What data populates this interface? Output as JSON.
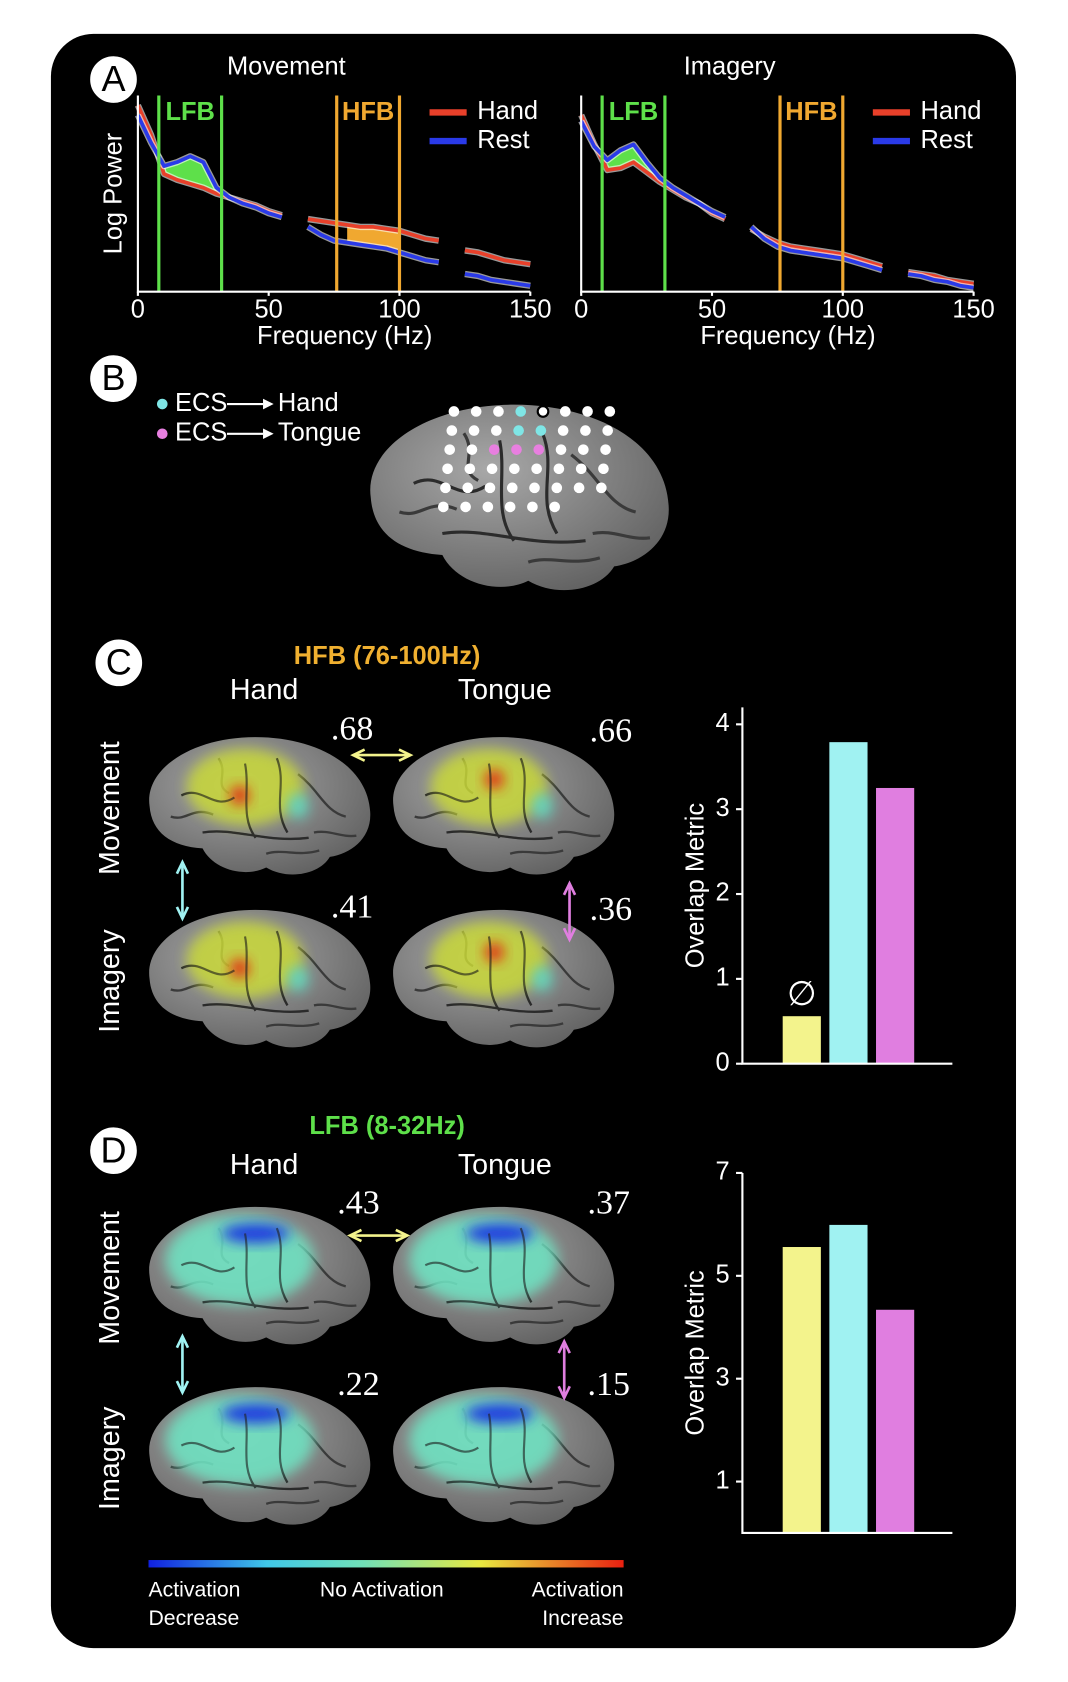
{
  "panel_labels": [
    "A",
    "B",
    "C",
    "D"
  ],
  "chart_data": [
    {
      "type": "line",
      "title": "Movement",
      "ylabel": "Log Power",
      "xlabel": "Frequency (Hz)",
      "x": [
        0,
        5,
        10,
        15,
        20,
        25,
        30,
        35,
        40,
        45,
        50,
        55,
        60,
        65,
        70,
        75,
        80,
        85,
        90,
        95,
        100,
        105,
        110,
        115,
        120,
        125,
        130,
        135,
        140,
        145,
        150
      ],
      "series": [
        {
          "name": "Hand",
          "color": "#e8402a",
          "values": [
            9.5,
            8.0,
            6.0,
            5.7,
            5.5,
            5.3,
            5.0,
            4.8,
            4.6,
            4.4,
            4.1,
            3.9,
            null,
            3.7,
            3.6,
            3.5,
            3.4,
            3.3,
            3.3,
            3.2,
            3.1,
            2.9,
            2.7,
            2.6,
            null,
            2.1,
            2.0,
            1.8,
            1.6,
            1.5,
            1.4
          ]
        },
        {
          "name": "Rest",
          "color": "#2a3ae8",
          "values": [
            9.0,
            7.6,
            6.4,
            6.6,
            6.9,
            6.6,
            5.3,
            4.8,
            4.5,
            4.3,
            4.0,
            3.8,
            null,
            3.3,
            2.9,
            2.6,
            2.5,
            2.4,
            2.3,
            2.2,
            2.0,
            1.8,
            1.6,
            1.5,
            null,
            0.9,
            0.8,
            0.6,
            0.5,
            0.4,
            0.3
          ]
        }
      ],
      "bands": [
        {
          "label": "LFB",
          "range": [
            8,
            32
          ],
          "color": "#5ee04a"
        },
        {
          "label": "HFB",
          "range": [
            76,
            100
          ],
          "color": "#f0a830"
        }
      ],
      "xlim": [
        0,
        150
      ],
      "xticks": [
        0,
        50,
        100,
        150
      ],
      "ylim": [
        0,
        10
      ]
    },
    {
      "type": "line",
      "title": "Imagery",
      "xlabel": "Frequency (Hz)",
      "x": [
        0,
        5,
        10,
        15,
        20,
        25,
        30,
        35,
        40,
        45,
        50,
        55,
        60,
        65,
        70,
        75,
        80,
        85,
        90,
        95,
        100,
        105,
        110,
        115,
        120,
        125,
        130,
        135,
        140,
        145,
        150
      ],
      "series": [
        {
          "name": "Hand",
          "color": "#e8402a",
          "values": [
            9.0,
            7.5,
            6.2,
            6.3,
            6.6,
            6.1,
            5.6,
            5.2,
            4.8,
            4.5,
            4.0,
            3.7,
            null,
            3.2,
            2.8,
            2.5,
            2.3,
            2.2,
            2.1,
            2.0,
            1.9,
            1.7,
            1.5,
            1.3,
            null,
            1.0,
            0.9,
            0.8,
            0.6,
            0.5,
            0.4
          ]
        },
        {
          "name": "Rest",
          "color": "#2a3ae8",
          "values": [
            8.7,
            7.4,
            6.7,
            7.2,
            7.5,
            6.6,
            5.8,
            5.3,
            4.9,
            4.5,
            4.1,
            3.8,
            null,
            3.3,
            2.7,
            2.3,
            2.1,
            2.0,
            1.9,
            1.8,
            1.7,
            1.5,
            1.3,
            1.1,
            null,
            0.9,
            0.8,
            0.6,
            0.5,
            0.3,
            0.2
          ]
        }
      ],
      "bands": [
        {
          "label": "LFB",
          "range": [
            8,
            32
          ],
          "color": "#5ee04a"
        },
        {
          "label": "HFB",
          "range": [
            76,
            100
          ],
          "color": "#f0a830"
        }
      ],
      "xlim": [
        0,
        150
      ],
      "xticks": [
        0,
        50,
        100,
        150
      ],
      "ylim": [
        0,
        10
      ]
    },
    {
      "type": "bar",
      "ylabel": "Overlap Metric",
      "values": [
        0.56,
        3.79,
        3.25
      ],
      "colors": [
        "#f3f38c",
        "#a0f2f2",
        "#e07ee0"
      ],
      "value_annotations": [
        "∅",
        null,
        null
      ],
      "ylim": [
        0,
        4.2
      ],
      "yticks": [
        0,
        1,
        2,
        3,
        4
      ]
    },
    {
      "type": "bar",
      "ylabel": "Overlap Metric",
      "values": [
        5.56,
        5.99,
        4.34
      ],
      "colors": [
        "#f3f38c",
        "#a0f2f2",
        "#e07ee0"
      ],
      "ylim": [
        0,
        7
      ],
      "yticks": [
        1,
        3,
        5,
        7
      ]
    }
  ],
  "panel_b": {
    "legend": [
      {
        "source": "ECS",
        "target": "Hand",
        "color": "#7fe6e6"
      },
      {
        "source": "ECS",
        "target": "Tongue",
        "color": "#e87fe0"
      }
    ]
  },
  "panel_c": {
    "band_title": "HFB (76-100Hz)",
    "title_color": "#f0b030",
    "columns": [
      "Hand",
      "Tongue"
    ],
    "rows": [
      "Movement",
      "Imagery"
    ],
    "correlations": [
      ".68",
      ".66",
      ".41",
      ".36"
    ]
  },
  "panel_d": {
    "band_title": "LFB (8-32Hz)",
    "title_color": "#5ee04a",
    "columns": [
      "Hand",
      "Tongue"
    ],
    "rows": [
      "Movement",
      "Imagery"
    ],
    "correlations": [
      ".43",
      ".37",
      ".22",
      ".15"
    ]
  },
  "colorbar": {
    "labels": [
      [
        "Activation",
        "Decrease"
      ],
      [
        "No Activation"
      ],
      [
        "Activation",
        "Increase"
      ]
    ]
  }
}
